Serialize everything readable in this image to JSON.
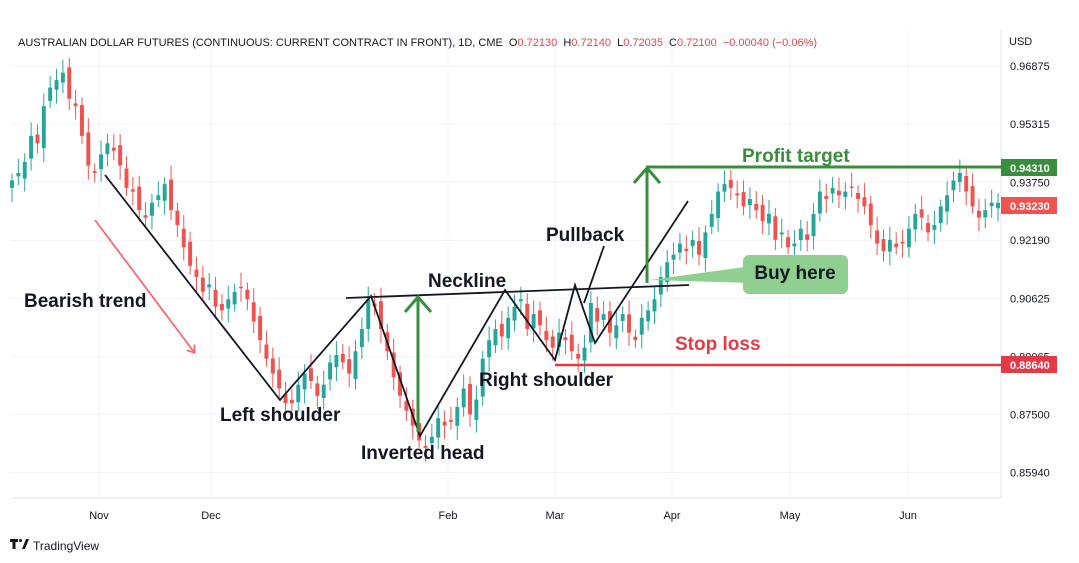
{
  "header": {
    "symbol": "AUSTRALIAN DOLLAR FUTURES (CONTINUOUS: CURRENT CONTRACT IN FRONT), 1D, CME",
    "o_label": "O",
    "o_value": "0.72130",
    "h_label": "H",
    "h_value": "0.72140",
    "l_label": "L",
    "l_value": "0.72035",
    "c_label": "C",
    "c_value": "0.72100",
    "change": "−0.00040 (−0.06%)",
    "currency": "USD"
  },
  "brand": "TradingView",
  "colors": {
    "up": "#26a69a",
    "down": "#ef5350",
    "green": "#388e3c",
    "red": "#e53945",
    "buy_bg": "#8fcf8f"
  },
  "annotations": {
    "bearish_trend": "Bearish trend",
    "left_shoulder": "Left shoulder",
    "inverted_head": "Inverted head",
    "neckline": "Neckline",
    "right_shoulder": "Right shoulder",
    "pullback": "Pullback",
    "buy_here": "Buy here",
    "profit_target": "Profit target",
    "stop_loss": "Stop loss"
  },
  "chart_data": {
    "type": "candlestick",
    "title": "AUSTRALIAN DOLLAR FUTURES (CONTINUOUS: CURRENT CONTRACT IN FRONT), 1D, CME",
    "x_labels": [
      "Nov",
      "Dec",
      "Feb",
      "Mar",
      "Apr",
      "May",
      "Jun"
    ],
    "y_ticks": [
      "0.96875",
      "0.95315",
      "0.93750",
      "0.92190",
      "0.90625",
      "0.89065",
      "0.87500",
      "0.85940"
    ],
    "ylim": [
      0.8525,
      0.9785
    ],
    "price_tags": [
      {
        "value": "0.94310",
        "color": "#388e3c",
        "role": "profit-target"
      },
      {
        "value": "0.93230",
        "color": "#ef5350",
        "role": "last-price"
      },
      {
        "value": "0.88640",
        "color": "#e53945",
        "role": "stop-loss"
      }
    ],
    "series": [
      {
        "name": "price",
        "values": [
          0.938,
          0.94,
          0.943,
          0.95,
          0.948,
          0.958,
          0.963,
          0.965,
          0.967,
          0.96,
          0.958,
          0.95,
          0.942,
          0.94,
          0.945,
          0.948,
          0.946,
          0.942,
          0.936,
          0.935,
          0.93,
          0.928,
          0.932,
          0.934,
          0.937,
          0.93,
          0.926,
          0.92,
          0.915,
          0.912,
          0.908,
          0.91,
          0.904,
          0.903,
          0.906,
          0.908,
          0.909,
          0.906,
          0.9,
          0.895,
          0.89,
          0.886,
          0.882,
          0.878,
          0.878,
          0.883,
          0.886,
          0.884,
          0.88,
          0.883,
          0.889,
          0.891,
          0.889,
          0.886,
          0.892,
          0.898,
          0.906,
          0.904,
          0.898,
          0.892,
          0.885,
          0.88,
          0.876,
          0.872,
          0.868,
          0.866,
          0.869,
          0.874,
          0.872,
          0.873,
          0.877,
          0.882,
          0.875,
          0.879,
          0.89,
          0.895,
          0.898,
          0.896,
          0.901,
          0.904,
          0.906,
          0.898,
          0.902,
          0.899,
          0.895,
          0.893,
          0.897,
          0.895,
          0.892,
          0.89,
          0.893,
          0.905,
          0.9,
          0.902,
          0.897,
          0.899,
          0.902,
          0.897,
          0.895,
          0.901,
          0.903,
          0.906,
          0.912,
          0.916,
          0.918,
          0.921,
          0.919,
          0.922,
          0.918,
          0.924,
          0.929,
          0.935,
          0.937,
          0.936,
          0.934,
          0.931,
          0.933,
          0.93,
          0.927,
          0.929,
          0.922,
          0.924,
          0.92,
          0.921,
          0.925,
          0.922,
          0.929,
          0.935,
          0.933,
          0.936,
          0.934,
          0.935,
          0.936,
          0.933,
          0.931,
          0.926,
          0.921,
          0.919,
          0.922,
          0.92,
          0.921,
          0.925,
          0.929,
          0.928,
          0.924,
          0.926,
          0.931,
          0.934,
          0.938,
          0.94,
          0.935,
          0.931,
          0.928,
          0.93,
          0.932,
          0.932
        ]
      }
    ]
  }
}
